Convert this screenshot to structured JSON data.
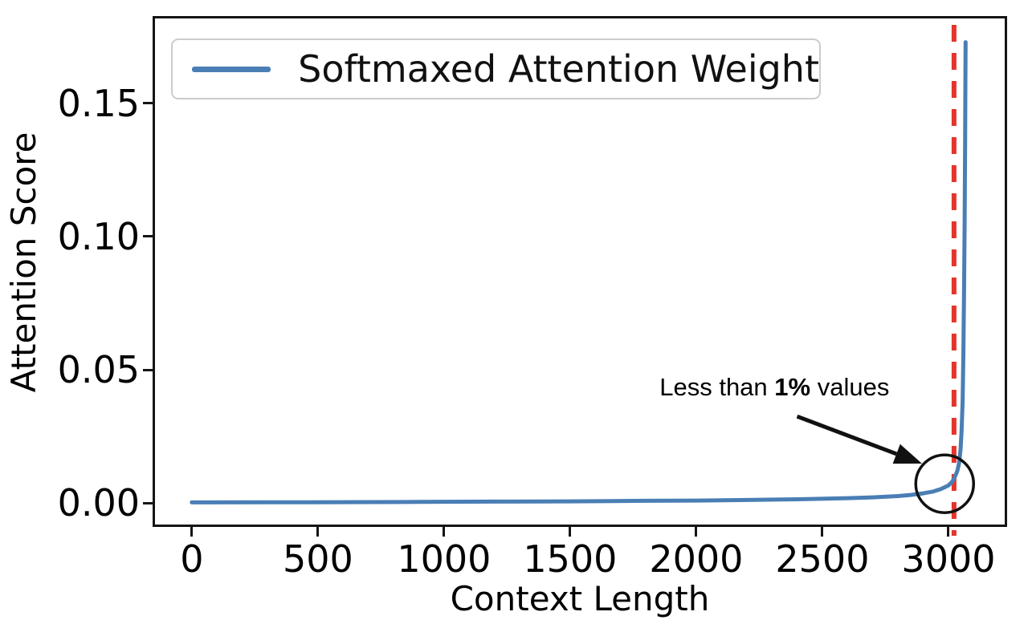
{
  "chart_data": {
    "type": "line",
    "title": "",
    "xlabel": "Context Length",
    "ylabel": "Attention Score",
    "xlim": [
      -146,
      3223
    ],
    "ylim": [
      -0.0081,
      0.1819
    ],
    "xticks": [
      0,
      500,
      1000,
      1500,
      2000,
      2500,
      3000
    ],
    "yticks": [
      0,
      0.05,
      0.1,
      0.15
    ],
    "ytick_labels": [
      "0.00",
      "0.05",
      "0.10",
      "0.15"
    ],
    "grid": false,
    "legend_position": "upper left",
    "series": [
      {
        "name": "Softmaxed Attention Weight",
        "color": "#4a7eb5",
        "line_width": 5,
        "points": [
          [
            0,
            0.0002
          ],
          [
            300,
            0.00025
          ],
          [
            600,
            0.0003
          ],
          [
            900,
            0.0004
          ],
          [
            1200,
            0.0005
          ],
          [
            1500,
            0.0006
          ],
          [
            1800,
            0.0008
          ],
          [
            2000,
            0.0009
          ],
          [
            2200,
            0.0011
          ],
          [
            2400,
            0.0014
          ],
          [
            2600,
            0.0018
          ],
          [
            2700,
            0.0021
          ],
          [
            2800,
            0.0026
          ],
          [
            2850,
            0.003
          ],
          [
            2900,
            0.0036
          ],
          [
            2940,
            0.0043
          ],
          [
            2970,
            0.0052
          ],
          [
            3000,
            0.0066
          ],
          [
            3015,
            0.008
          ],
          [
            3025,
            0.0097
          ],
          [
            3035,
            0.012
          ],
          [
            3042,
            0.015
          ],
          [
            3048,
            0.02
          ],
          [
            3052,
            0.027
          ],
          [
            3056,
            0.038
          ],
          [
            3059,
            0.055
          ],
          [
            3062,
            0.08
          ],
          [
            3064,
            0.105
          ],
          [
            3066,
            0.135
          ],
          [
            3067,
            0.155
          ],
          [
            3068,
            0.173
          ]
        ]
      }
    ],
    "vline": {
      "x": 3022,
      "color": "#e5342b",
      "style": "dashed",
      "width": 6,
      "y_from": -0.0123,
      "y_to": 0.1795
    },
    "annotation": {
      "text_prefix": "Less than ",
      "text_bold": "1%",
      "text_suffix": " values",
      "color": "#111111",
      "text_center": {
        "x": 2310,
        "y": 0.0435
      },
      "arrow_tail": {
        "x": 2400,
        "y": 0.0325
      },
      "arrow_tip": {
        "x": 2895,
        "y": 0.0148
      },
      "circle_center": {
        "x": 2985,
        "y": 0.0072
      },
      "circle_radius_px": 36
    }
  },
  "legend": {
    "label": "Softmaxed Attention Weight",
    "line_color": "#4a7eb5"
  },
  "colors": {
    "line": "#4a7eb5",
    "vline": "#e5342b",
    "axis": "#151515",
    "text": "#000000",
    "legend_border": "#cccccc"
  }
}
